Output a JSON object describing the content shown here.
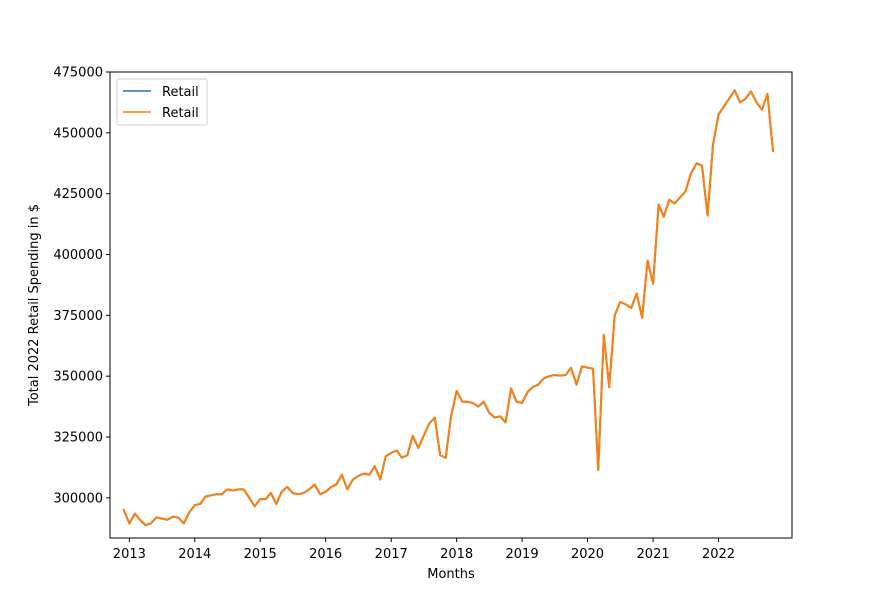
{
  "chart_data": {
    "type": "line",
    "title": "",
    "xlabel": "Months",
    "ylabel": "Total 2022 Retail Spending in $",
    "xlim": [
      "2012-09-15",
      "2023-02-15"
    ],
    "ylim": [
      283500,
      475000
    ],
    "x_ticks": [
      "2013",
      "2014",
      "2015",
      "2016",
      "2017",
      "2018",
      "2019",
      "2020",
      "2021",
      "2022"
    ],
    "y_ticks": [
      300000,
      325000,
      350000,
      375000,
      400000,
      425000,
      450000,
      475000
    ],
    "legend_position": "top-left",
    "grid": false,
    "x": [
      "2012-12",
      "2013-01",
      "2013-02",
      "2013-03",
      "2013-04",
      "2013-05",
      "2013-06",
      "2013-07",
      "2013-08",
      "2013-09",
      "2013-10",
      "2013-11",
      "2013-12",
      "2014-01",
      "2014-02",
      "2014-03",
      "2014-04",
      "2014-05",
      "2014-06",
      "2014-07",
      "2014-08",
      "2014-09",
      "2014-10",
      "2014-11",
      "2014-12",
      "2015-01",
      "2015-02",
      "2015-03",
      "2015-04",
      "2015-05",
      "2015-06",
      "2015-07",
      "2015-08",
      "2015-09",
      "2015-10",
      "2015-11",
      "2015-12",
      "2016-01",
      "2016-02",
      "2016-03",
      "2016-04",
      "2016-05",
      "2016-06",
      "2016-07",
      "2016-08",
      "2016-09",
      "2016-10",
      "2016-11",
      "2016-12",
      "2017-01",
      "2017-02",
      "2017-03",
      "2017-04",
      "2017-05",
      "2017-06",
      "2017-07",
      "2017-08",
      "2017-09",
      "2017-10",
      "2017-11",
      "2017-12",
      "2018-01",
      "2018-02",
      "2018-03",
      "2018-04",
      "2018-05",
      "2018-06",
      "2018-07",
      "2018-08",
      "2018-09",
      "2018-10",
      "2018-11",
      "2018-12",
      "2019-01",
      "2019-02",
      "2019-03",
      "2019-04",
      "2019-05",
      "2019-06",
      "2019-07",
      "2019-08",
      "2019-09",
      "2019-10",
      "2019-11",
      "2019-12",
      "2020-01",
      "2020-02",
      "2020-03",
      "2020-04",
      "2020-05",
      "2020-06",
      "2020-07",
      "2020-08",
      "2020-09",
      "2020-10",
      "2020-11",
      "2020-12",
      "2021-01",
      "2021-02",
      "2021-03",
      "2021-04",
      "2021-05",
      "2021-06",
      "2021-07",
      "2021-08",
      "2021-09",
      "2021-10",
      "2021-11",
      "2021-12",
      "2022-01",
      "2022-02",
      "2022-03",
      "2022-04",
      "2022-05",
      "2022-06",
      "2022-07",
      "2022-08",
      "2022-09",
      "2022-10",
      "2022-11"
    ],
    "series": [
      {
        "name": "Retail",
        "color": "#1f77b4",
        "values": [
          295000,
          289500,
          293500,
          291000,
          288800,
          289500,
          292000,
          291500,
          291000,
          292300,
          291900,
          289500,
          294000,
          297000,
          297500,
          300500,
          301000,
          301500,
          301500,
          303500,
          303000,
          303500,
          303500,
          300000,
          296500,
          299500,
          299500,
          302000,
          297500,
          302500,
          304500,
          302000,
          301500,
          302000,
          303500,
          305500,
          301500,
          302500,
          304500,
          305500,
          309500,
          303500,
          307500,
          309000,
          310000,
          309500,
          313000,
          307500,
          317000,
          318500,
          319500,
          316500,
          317500,
          325500,
          320500,
          325500,
          330500,
          333000,
          317500,
          316500,
          333500,
          344000,
          339500,
          339500,
          339000,
          337500,
          339500,
          335000,
          333000,
          333500,
          331000,
          345000,
          339500,
          339000,
          343500,
          345500,
          346500,
          349000,
          350000,
          350500,
          350200,
          350500,
          353500,
          346500,
          354000,
          353500,
          353000,
          311500,
          367000,
          345500,
          375000,
          380500,
          379500,
          378000,
          384000,
          374000,
          397500,
          388000,
          420500,
          415500,
          422500,
          421000,
          423500,
          426000,
          433500,
          437500,
          436500,
          416000,
          445000,
          457500,
          461000,
          464000,
          467500,
          462500,
          464000,
          467000,
          462500,
          459500,
          466000,
          442500
        ]
      },
      {
        "name": "Retail",
        "color": "#ff7f0e",
        "values": [
          295000,
          289500,
          293500,
          291000,
          288800,
          289500,
          292000,
          291500,
          291000,
          292300,
          291900,
          289500,
          294000,
          297000,
          297500,
          300500,
          301000,
          301500,
          301500,
          303500,
          303000,
          303500,
          303500,
          300000,
          296500,
          299500,
          299500,
          302000,
          297500,
          302500,
          304500,
          302000,
          301500,
          302000,
          303500,
          305500,
          301500,
          302500,
          304500,
          305500,
          309500,
          303500,
          307500,
          309000,
          310000,
          309500,
          313000,
          307500,
          317000,
          318500,
          319500,
          316500,
          317500,
          325500,
          320500,
          325500,
          330500,
          333000,
          317500,
          316500,
          333500,
          344000,
          339500,
          339500,
          339000,
          337500,
          339500,
          335000,
          333000,
          333500,
          331000,
          345000,
          339500,
          339000,
          343500,
          345500,
          346500,
          349000,
          350000,
          350500,
          350200,
          350500,
          353500,
          346500,
          354000,
          353500,
          353000,
          311500,
          367000,
          345500,
          375000,
          380500,
          379500,
          378000,
          384000,
          374000,
          397500,
          388000,
          420500,
          415500,
          422500,
          421000,
          423500,
          426000,
          433500,
          437500,
          436500,
          416000,
          445000,
          457500,
          461000,
          464000,
          467500,
          462500,
          464000,
          467000,
          462500,
          459500,
          466000,
          442500
        ]
      }
    ]
  }
}
